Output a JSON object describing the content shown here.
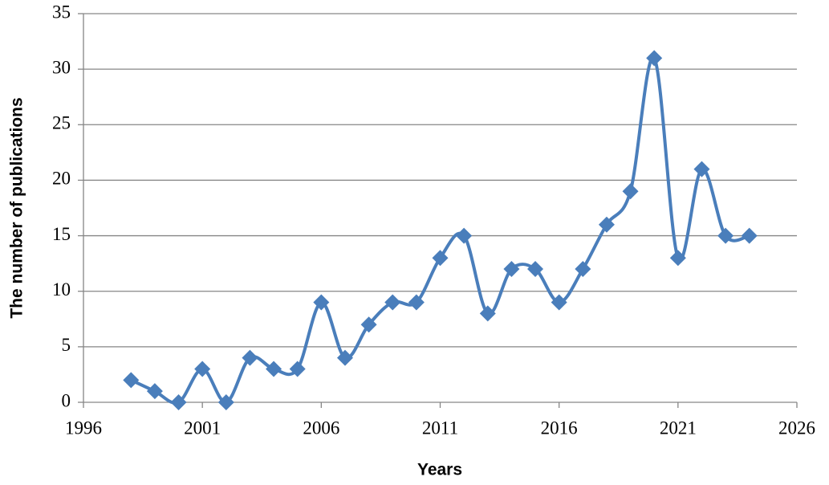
{
  "chart_data": {
    "type": "line",
    "xlabel": "Years",
    "ylabel": "The number of publications",
    "x": [
      1998,
      1999,
      2000,
      2001,
      2002,
      2003,
      2004,
      2005,
      2006,
      2007,
      2008,
      2009,
      2010,
      2011,
      2012,
      2013,
      2014,
      2015,
      2016,
      2017,
      2018,
      2019,
      2020,
      2021,
      2022,
      2023,
      2024
    ],
    "values": [
      2,
      1,
      0,
      3,
      0,
      4,
      3,
      3,
      9,
      4,
      7,
      9,
      9,
      13,
      15,
      8,
      12,
      12,
      9,
      12,
      16,
      19,
      31,
      13,
      21,
      15,
      15
    ],
    "color": "#4a7ebb",
    "xlim": [
      1996,
      2026
    ],
    "xticks": [
      1996,
      2001,
      2006,
      2011,
      2016,
      2021,
      2026
    ],
    "ylim": [
      0,
      35
    ],
    "yticks": [
      0,
      5,
      10,
      15,
      20,
      25,
      30,
      35
    ],
    "grid": true,
    "smooth": true,
    "marker": "diamond"
  }
}
